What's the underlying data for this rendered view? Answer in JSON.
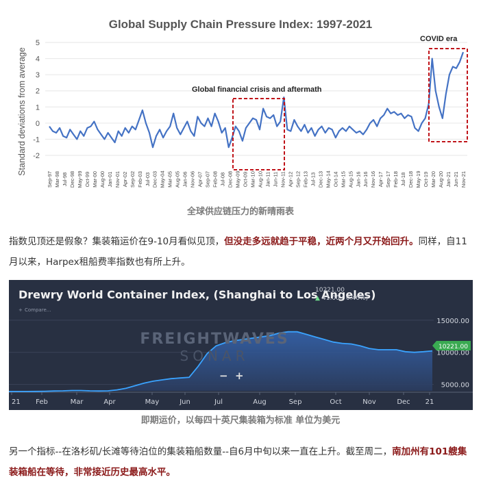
{
  "chart1": {
    "title": "Global Supply Chain Pressure Index: 1997-2021",
    "ylabel": "Standard deviations from average",
    "annotations": {
      "gfc": "Global financial crisis and aftermath",
      "covid": "COVID era"
    },
    "colors": {
      "line": "#4472c4",
      "box": "#c0141a"
    },
    "chart_data": {
      "type": "line",
      "ylim": [
        -2,
        5
      ],
      "yticks": [
        "5",
        "4",
        "3",
        "2",
        "1",
        "0",
        "-1",
        "-2"
      ],
      "xlabels": [
        "Sep-97",
        "Mar-98",
        "Jul-98",
        "Dec-98",
        "May-99",
        "Oct-99",
        "Mar-00",
        "Aug-00",
        "Jan-01",
        "Nov-01",
        "Apr-02",
        "Sep-02",
        "Feb-03",
        "Jul-03",
        "Dec-03",
        "May-04",
        "Mar-05",
        "Aug-05",
        "Jan-06",
        "Nov-06",
        "Apr-07",
        "Sep-07",
        "Feb-08",
        "Jul-08",
        "Dec-08",
        "May-09",
        "Oct-09",
        "Mar-10",
        "Aug-10",
        "Jan-11",
        "Jun-11",
        "Nov-11",
        "Apr-12",
        "Sep-12",
        "Feb-13",
        "Jul-13",
        "Dec-13",
        "May-14",
        "Oct-14",
        "Mar-15",
        "Aug-15",
        "Jan-16",
        "Jun-16",
        "Nov-16",
        "Apr-17",
        "Sep-17",
        "Feb-18",
        "Jul-18",
        "Dec-18",
        "May-19",
        "Oct-19",
        "Mar-20",
        "Aug-20",
        "Jan-21",
        "Jun-21",
        "Nov-21"
      ],
      "values": [
        -0.2,
        -0.5,
        -0.6,
        -0.3,
        -0.8,
        -0.9,
        -0.4,
        -0.7,
        -1.0,
        -0.5,
        -0.8,
        -0.3,
        -0.2,
        0.1,
        -0.4,
        -0.7,
        -1.0,
        -0.6,
        -0.9,
        -1.2,
        -0.5,
        -0.8,
        -0.3,
        -0.6,
        -0.2,
        -0.4,
        0.2,
        0.8,
        0.0,
        -0.6,
        -1.5,
        -0.8,
        -0.4,
        -0.9,
        -0.5,
        -0.2,
        0.6,
        -0.3,
        -0.7,
        -0.3,
        0.1,
        -0.5,
        -0.8,
        0.4,
        0.0,
        -0.2,
        0.3,
        -0.2,
        0.6,
        0.1,
        -0.6,
        -0.3,
        -1.5,
        -0.9,
        -0.2,
        -0.5,
        -1.1,
        -0.3,
        0.0,
        0.3,
        0.2,
        -0.4,
        0.9,
        0.4,
        0.3,
        0.5,
        -0.2,
        0.1,
        1.6,
        -0.4,
        -0.5,
        0.2,
        -0.2,
        -0.5,
        -0.1,
        -0.6,
        -0.3,
        -0.8,
        -0.4,
        -0.2,
        -0.6,
        -0.3,
        -0.4,
        -0.9,
        -0.5,
        -0.3,
        -0.5,
        -0.2,
        -0.4,
        -0.6,
        -0.5,
        -0.7,
        -0.4,
        0.0,
        0.2,
        -0.2,
        0.3,
        0.5,
        0.9,
        0.6,
        0.7,
        0.5,
        0.6,
        0.3,
        0.5,
        0.4,
        -0.3,
        -0.5,
        0.0,
        0.3,
        1.2,
        4.0,
        2.0,
        1.0,
        0.3,
        1.8,
        3.0,
        3.5,
        3.4,
        3.8,
        4.4
      ]
    }
  },
  "caption1": "全球供应链压力的新晴雨表",
  "para1": {
    "normal1": "指数见顶还是假象？集装箱运价在9-10月看似见顶，",
    "bold": "但没走多远就趋于平稳，近两个月又开始回升。",
    "normal2": "同样，自11月以来，Harpex租船费率指数也有所上升。"
  },
  "chart2": {
    "title": "Drewry World Container Index, (Shanghai to Los Angeles)",
    "value": "10221.00",
    "change": "41.00 ( 0.40%)",
    "compare": "Compare...",
    "watermark_top": "FREIGHTWAVES",
    "watermark_bottom": "SONAR",
    "current_label": "10221.00",
    "zoom_minus": "−",
    "zoom_plus": "+",
    "colors": {
      "line": "#3aa3ff",
      "fill": "#2c5aa0",
      "badge": "#3aaa52",
      "bg": "#283042"
    },
    "chart_data": {
      "type": "area",
      "ylim": [
        4000,
        17000
      ],
      "yticks": [
        "15000.00",
        "10000.00",
        "5000.00"
      ],
      "ytick_values": [
        15000,
        10000,
        5000
      ],
      "xlabels": [
        "21",
        "Feb",
        "Mar",
        "Apr",
        "May",
        "Jun",
        "Jul",
        "Aug",
        "Sep",
        "Oct",
        "Nov",
        "Dec",
        "21"
      ],
      "values": [
        3900,
        3900,
        3900,
        3920,
        3940,
        3980,
        4000,
        4050,
        4050,
        4000,
        3980,
        4000,
        4150,
        4400,
        4800,
        5200,
        5500,
        5700,
        5900,
        6000,
        6100,
        7800,
        9800,
        11000,
        11500,
        11800,
        12000,
        12200,
        12400,
        12600,
        13000,
        13200,
        13200,
        12800,
        12400,
        12000,
        11600,
        11400,
        11300,
        11000,
        10600,
        10400,
        10400,
        10400,
        10100,
        10000,
        10100,
        10221
      ]
    }
  },
  "caption2": "即期运价，以每四十英尺集装箱为标准  单位为美元",
  "para2": {
    "normal": "另一个指标--在洛杉矶/长滩等待泊位的集装箱船数量--自6月中旬以来一直在上升。截至周二，",
    "bold": "南加州有101艘集装箱船在等待，非常接近历史最高水平。"
  }
}
